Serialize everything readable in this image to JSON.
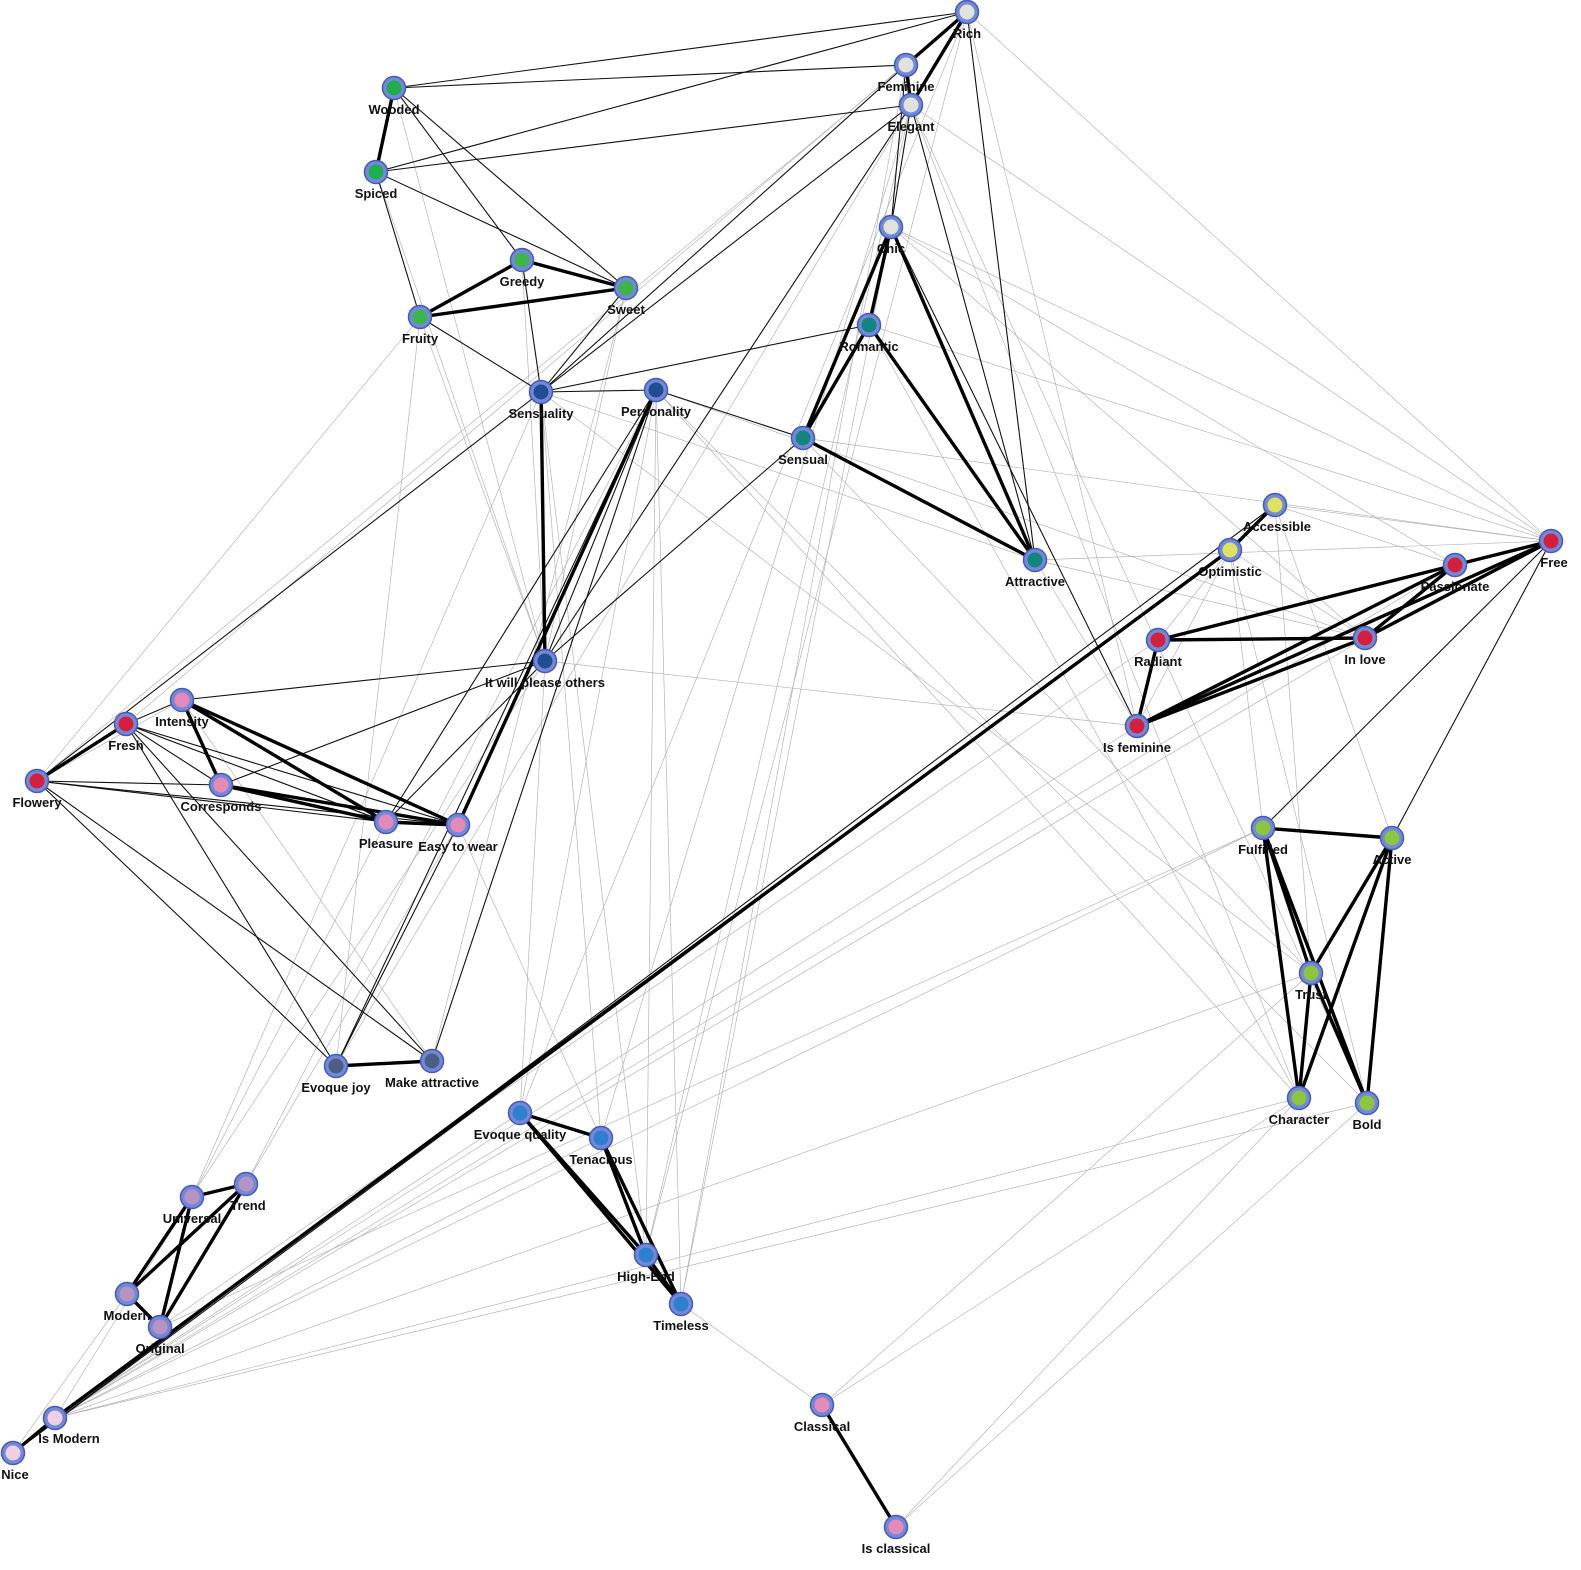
{
  "groups": {
    "silver": "#dfe3dc",
    "forest": "#1fae4e",
    "green": "#3db54a",
    "teal": "#13857f",
    "navy": "#1f4f92",
    "yellow": "#dde360",
    "red": "#d4203d",
    "pink": "#e58ab8",
    "lime": "#8cc63f",
    "slate": "#4b5e86",
    "blue": "#2f7fd0",
    "lavender": "#b594c4",
    "blush": "#efcfe3"
  },
  "node_style": {
    "ring": "#7389d6",
    "ring_stroke": "#4458bd"
  },
  "edge_colors": {
    "strong": "#000000",
    "medium": "#111111",
    "weak": "#b5b5b5"
  },
  "nodes": [
    {
      "id": "rich",
      "label": "Rich",
      "group": "silver"
    },
    {
      "id": "feminine",
      "label": "Feminine",
      "group": "silver"
    },
    {
      "id": "elegant",
      "label": "Elegant",
      "group": "silver"
    },
    {
      "id": "chic",
      "label": "Chic",
      "group": "silver"
    },
    {
      "id": "wooded",
      "label": "Wooded",
      "group": "forest"
    },
    {
      "id": "spiced",
      "label": "Spiced",
      "group": "forest"
    },
    {
      "id": "greedy",
      "label": "Greedy",
      "group": "green"
    },
    {
      "id": "sweet",
      "label": "Sweet",
      "group": "green"
    },
    {
      "id": "fruity",
      "label": "Fruity",
      "group": "green"
    },
    {
      "id": "romantic",
      "label": "Romantic",
      "group": "teal"
    },
    {
      "id": "sensual",
      "label": "Sensual",
      "group": "teal"
    },
    {
      "id": "attractive",
      "label": "Attractive",
      "group": "teal"
    },
    {
      "id": "sensuality",
      "label": "Sensuality",
      "group": "navy"
    },
    {
      "id": "personality",
      "label": "Personality",
      "group": "navy"
    },
    {
      "id": "please",
      "label": "It will please others",
      "group": "navy"
    },
    {
      "id": "accessible",
      "label": "Accessible",
      "group": "yellow"
    },
    {
      "id": "optimistic",
      "label": "Optimistic",
      "group": "yellow"
    },
    {
      "id": "free",
      "label": "Free",
      "group": "red"
    },
    {
      "id": "passionate",
      "label": "Passionate",
      "group": "red"
    },
    {
      "id": "radiant",
      "label": "Radiant",
      "group": "red"
    },
    {
      "id": "inlove",
      "label": "In love",
      "group": "red"
    },
    {
      "id": "isfeminine",
      "label": "Is feminine",
      "group": "red"
    },
    {
      "id": "intensity",
      "label": "Intensity",
      "group": "pink"
    },
    {
      "id": "fresh",
      "label": "Fresh",
      "group": "red"
    },
    {
      "id": "flowery",
      "label": "Flowery",
      "group": "red"
    },
    {
      "id": "corresponds",
      "label": "Corresponds",
      "group": "pink"
    },
    {
      "id": "pleasure",
      "label": "Pleasure",
      "group": "pink"
    },
    {
      "id": "easy",
      "label": "Easy to wear",
      "group": "pink"
    },
    {
      "id": "fulfilled",
      "label": "Fulfilled",
      "group": "lime"
    },
    {
      "id": "active",
      "label": "Active",
      "group": "lime"
    },
    {
      "id": "trust",
      "label": "Trust",
      "group": "lime"
    },
    {
      "id": "character",
      "label": "Character",
      "group": "lime"
    },
    {
      "id": "bold",
      "label": "Bold",
      "group": "lime"
    },
    {
      "id": "joy",
      "label": "Evoque joy",
      "group": "slate"
    },
    {
      "id": "makeattr",
      "label": "Make attractive",
      "group": "slate"
    },
    {
      "id": "quality",
      "label": "Evoque quality",
      "group": "blue"
    },
    {
      "id": "tenacious",
      "label": "Tenacious",
      "group": "blue"
    },
    {
      "id": "highend",
      "label": "High-End",
      "group": "blue"
    },
    {
      "id": "timeless",
      "label": "Timeless",
      "group": "blue"
    },
    {
      "id": "universal",
      "label": "Universal",
      "group": "lavender"
    },
    {
      "id": "trend",
      "label": "Trend",
      "group": "lavender"
    },
    {
      "id": "modern",
      "label": "Modern",
      "group": "lavender"
    },
    {
      "id": "original",
      "label": "Original",
      "group": "lavender"
    },
    {
      "id": "ismodern",
      "label": "Is Modern",
      "group": "blush"
    },
    {
      "id": "nice",
      "label": "Nice",
      "group": "blush"
    },
    {
      "id": "classical",
      "label": "Classical",
      "group": "pink"
    },
    {
      "id": "isclassical",
      "label": "Is classical",
      "group": "pink"
    }
  ],
  "edges": [
    [
      "wooded",
      "spiced",
      "strong"
    ],
    [
      "greedy",
      "sweet",
      "strong"
    ],
    [
      "greedy",
      "fruity",
      "strong"
    ],
    [
      "fruity",
      "sweet",
      "strong"
    ],
    [
      "rich",
      "feminine",
      "strong"
    ],
    [
      "rich",
      "elegant",
      "strong"
    ],
    [
      "feminine",
      "elegant",
      "strong"
    ],
    [
      "chic",
      "romantic",
      "strong"
    ],
    [
      "chic",
      "sensual",
      "strong"
    ],
    [
      "romantic",
      "sensual",
      "strong"
    ],
    [
      "romantic",
      "attractive",
      "strong"
    ],
    [
      "chic",
      "attractive",
      "strong"
    ],
    [
      "sensual",
      "attractive",
      "strong"
    ],
    [
      "passionate",
      "free",
      "strong"
    ],
    [
      "passionate",
      "radiant",
      "strong"
    ],
    [
      "radiant",
      "inlove",
      "strong"
    ],
    [
      "passionate",
      "inlove",
      "strong"
    ],
    [
      "inlove",
      "free",
      "strong"
    ],
    [
      "radiant",
      "isfeminine",
      "strong"
    ],
    [
      "isfeminine",
      "inlove",
      "strong"
    ],
    [
      "isfeminine",
      "passionate",
      "strong"
    ],
    [
      "isfeminine",
      "free",
      "strong"
    ],
    [
      "accessible",
      "optimistic",
      "strong"
    ],
    [
      "fresh",
      "flowery",
      "strong"
    ],
    [
      "intensity",
      "corresponds",
      "strong"
    ],
    [
      "intensity",
      "pleasure",
      "strong"
    ],
    [
      "intensity",
      "easy",
      "strong"
    ],
    [
      "corresponds",
      "pleasure",
      "strong"
    ],
    [
      "corresponds",
      "easy",
      "strong"
    ],
    [
      "pleasure",
      "easy",
      "strong"
    ],
    [
      "fulfilled",
      "active",
      "strong"
    ],
    [
      "fulfilled",
      "character",
      "strong"
    ],
    [
      "fulfilled",
      "bold",
      "strong"
    ],
    [
      "fulfilled",
      "trust",
      "strong"
    ],
    [
      "active",
      "trust",
      "strong"
    ],
    [
      "active",
      "character",
      "strong"
    ],
    [
      "active",
      "bold",
      "strong"
    ],
    [
      "trust",
      "character",
      "strong"
    ],
    [
      "trust",
      "bold",
      "strong"
    ],
    [
      "joy",
      "makeattr",
      "strong"
    ],
    [
      "quality",
      "tenacious",
      "strong"
    ],
    [
      "quality",
      "highend",
      "strong"
    ],
    [
      "quality",
      "timeless",
      "strong"
    ],
    [
      "tenacious",
      "highend",
      "strong"
    ],
    [
      "tenacious",
      "timeless",
      "strong"
    ],
    [
      "highend",
      "timeless",
      "strong"
    ],
    [
      "universal",
      "trend",
      "strong"
    ],
    [
      "universal",
      "modern",
      "strong"
    ],
    [
      "universal",
      "original",
      "strong"
    ],
    [
      "trend",
      "modern",
      "strong"
    ],
    [
      "trend",
      "original",
      "strong"
    ],
    [
      "modern",
      "original",
      "strong"
    ],
    [
      "ismodern",
      "nice",
      "strong"
    ],
    [
      "classical",
      "isclassical",
      "strong"
    ],
    [
      "sensuality",
      "please",
      "strong"
    ],
    [
      "personality",
      "easy",
      "strong"
    ],
    [
      "optimistic",
      "ismodern",
      "strong"
    ],
    [
      "accessible",
      "nice",
      "medium"
    ],
    [
      "optimistic",
      "nice",
      "medium"
    ],
    [
      "sensuality",
      "personality",
      "medium"
    ],
    [
      "personality",
      "sensual",
      "medium"
    ],
    [
      "sensuality",
      "romantic",
      "medium"
    ],
    [
      "sensuality",
      "fruity",
      "medium"
    ],
    [
      "sensuality",
      "greedy",
      "medium"
    ],
    [
      "sensuality",
      "sweet",
      "medium"
    ],
    [
      "sensuality",
      "elegant",
      "medium"
    ],
    [
      "sensuality",
      "feminine",
      "medium"
    ],
    [
      "wooded",
      "rich",
      "medium"
    ],
    [
      "wooded",
      "feminine",
      "medium"
    ],
    [
      "spiced",
      "rich",
      "medium"
    ],
    [
      "spiced",
      "elegant",
      "medium"
    ],
    [
      "wooded",
      "sweet",
      "medium"
    ],
    [
      "wooded",
      "greedy",
      "medium"
    ],
    [
      "spiced",
      "sweet",
      "medium"
    ],
    [
      "spiced",
      "fruity",
      "medium"
    ],
    [
      "personality",
      "joy",
      "medium"
    ],
    [
      "personality",
      "makeattr",
      "medium"
    ],
    [
      "personality",
      "pleasure",
      "medium"
    ],
    [
      "personality",
      "please",
      "medium"
    ],
    [
      "please",
      "intensity",
      "medium"
    ],
    [
      "please",
      "corresponds",
      "medium"
    ],
    [
      "please",
      "pleasure",
      "medium"
    ],
    [
      "please",
      "sensual",
      "medium"
    ],
    [
      "please",
      "elegant",
      "medium"
    ],
    [
      "fresh",
      "intensity",
      "medium"
    ],
    [
      "fresh",
      "joy",
      "medium"
    ],
    [
      "fresh",
      "makeattr",
      "medium"
    ],
    [
      "fresh",
      "pleasure",
      "medium"
    ],
    [
      "fresh",
      "easy",
      "medium"
    ],
    [
      "flowery",
      "joy",
      "medium"
    ],
    [
      "flowery",
      "makeattr",
      "medium"
    ],
    [
      "flowery",
      "pleasure",
      "medium"
    ],
    [
      "flowery",
      "easy",
      "medium"
    ],
    [
      "flowery",
      "sensuality",
      "medium"
    ],
    [
      "fresh",
      "corresponds",
      "medium"
    ],
    [
      "flowery",
      "corresponds",
      "medium"
    ],
    [
      "easy",
      "joy",
      "medium"
    ],
    [
      "chic",
      "isfeminine",
      "medium"
    ],
    [
      "elegant",
      "chic",
      "medium"
    ],
    [
      "feminine",
      "chic",
      "medium"
    ],
    [
      "attractive",
      "elegant",
      "medium"
    ],
    [
      "rich",
      "attractive",
      "medium"
    ],
    [
      "free",
      "fulfilled",
      "medium"
    ],
    [
      "free",
      "active",
      "medium"
    ],
    [
      "rich",
      "free",
      "weak"
    ],
    [
      "elegant",
      "free",
      "weak"
    ],
    [
      "chic",
      "free",
      "weak"
    ],
    [
      "chic",
      "passionate",
      "weak"
    ],
    [
      "chic",
      "inlove",
      "weak"
    ],
    [
      "romantic",
      "free",
      "weak"
    ],
    [
      "sensuality",
      "attractive",
      "weak"
    ],
    [
      "personality",
      "inlove",
      "weak"
    ],
    [
      "personality",
      "character",
      "weak"
    ],
    [
      "sensual",
      "free",
      "weak"
    ],
    [
      "attractive",
      "free",
      "weak"
    ],
    [
      "attractive",
      "inlove",
      "weak"
    ],
    [
      "attractive",
      "isfeminine",
      "weak"
    ],
    [
      "accessible",
      "free",
      "weak"
    ],
    [
      "accessible",
      "passionate",
      "weak"
    ],
    [
      "accessible",
      "trust",
      "weak"
    ],
    [
      "accessible",
      "active",
      "weak"
    ],
    [
      "optimistic",
      "fulfilled",
      "weak"
    ],
    [
      "optimistic",
      "inlove",
      "weak"
    ],
    [
      "optimistic",
      "radiant",
      "weak"
    ],
    [
      "optimistic",
      "isfeminine",
      "weak"
    ],
    [
      "optimistic",
      "bold",
      "weak"
    ],
    [
      "rich",
      "joy",
      "weak"
    ],
    [
      "rich",
      "fresh",
      "weak"
    ],
    [
      "rich",
      "highend",
      "weak"
    ],
    [
      "rich",
      "quality",
      "weak"
    ],
    [
      "feminine",
      "flowery",
      "weak"
    ],
    [
      "feminine",
      "timeless",
      "weak"
    ],
    [
      "elegant",
      "highend",
      "weak"
    ],
    [
      "elegant",
      "tenacious",
      "weak"
    ],
    [
      "elegant",
      "bold",
      "weak"
    ],
    [
      "chic",
      "timeless",
      "weak"
    ],
    [
      "elegant",
      "character",
      "weak"
    ],
    [
      "fruity",
      "flowery",
      "weak"
    ],
    [
      "fruity",
      "joy",
      "weak"
    ],
    [
      "fruity",
      "please",
      "weak"
    ],
    [
      "greedy",
      "please",
      "weak"
    ],
    [
      "sweet",
      "please",
      "weak"
    ],
    [
      "wooded",
      "please",
      "weak"
    ],
    [
      "spiced",
      "please",
      "weak"
    ],
    [
      "sweet",
      "makeattr",
      "weak"
    ],
    [
      "sensuality",
      "tenacious",
      "weak"
    ],
    [
      "sensuality",
      "highend",
      "weak"
    ],
    [
      "personality",
      "highend",
      "weak"
    ],
    [
      "personality",
      "timeless",
      "weak"
    ],
    [
      "personality",
      "quality",
      "weak"
    ],
    [
      "please",
      "quality",
      "weak"
    ],
    [
      "please",
      "isfeminine",
      "weak"
    ],
    [
      "pleasure",
      "universal",
      "weak"
    ],
    [
      "easy",
      "trend",
      "weak"
    ],
    [
      "easy",
      "tenacious",
      "weak"
    ],
    [
      "intensity",
      "makeattr",
      "weak"
    ],
    [
      "corresponds",
      "fresh",
      "weak"
    ],
    [
      "flowery",
      "intensity",
      "weak"
    ],
    [
      "modern",
      "please",
      "weak"
    ],
    [
      "universal",
      "sensuality",
      "weak"
    ],
    [
      "trend",
      "personality",
      "weak"
    ],
    [
      "ismodern",
      "universal",
      "weak"
    ],
    [
      "nice",
      "modern",
      "weak"
    ],
    [
      "ismodern",
      "fulfilled",
      "weak"
    ],
    [
      "ismodern",
      "trust",
      "weak"
    ],
    [
      "ismodern",
      "bold",
      "weak"
    ],
    [
      "ismodern",
      "isfeminine",
      "weak"
    ],
    [
      "ismodern",
      "inlove",
      "weak"
    ],
    [
      "ismodern",
      "passionate",
      "weak"
    ],
    [
      "ismodern",
      "quality",
      "weak"
    ],
    [
      "ismodern",
      "tenacious",
      "weak"
    ],
    [
      "ismodern",
      "character",
      "weak"
    ],
    [
      "original",
      "fulfilled",
      "weak"
    ],
    [
      "original",
      "radiant",
      "weak"
    ],
    [
      "timeless",
      "classical",
      "weak"
    ],
    [
      "classical",
      "trust",
      "weak"
    ],
    [
      "classical",
      "character",
      "weak"
    ],
    [
      "isclassical",
      "bold",
      "weak"
    ],
    [
      "isclassical",
      "character",
      "weak"
    ],
    [
      "sensuality",
      "trust",
      "weak"
    ],
    [
      "personality",
      "bold",
      "weak"
    ],
    [
      "romantic",
      "character",
      "weak"
    ],
    [
      "sensual",
      "trust",
      "weak"
    ],
    [
      "rich",
      "isfeminine",
      "weak"
    ]
  ]
}
